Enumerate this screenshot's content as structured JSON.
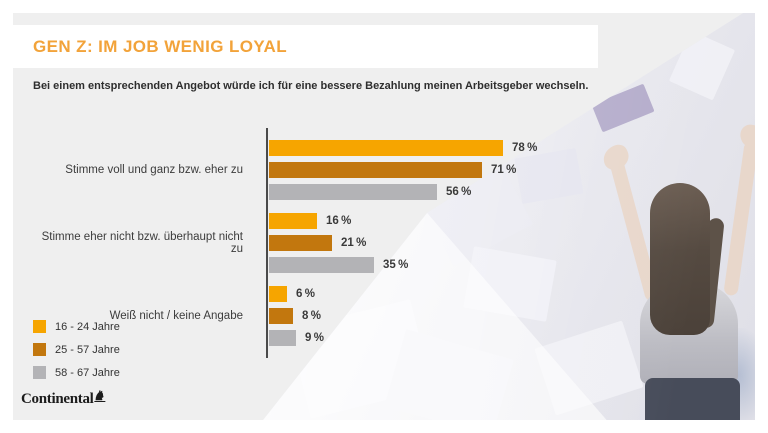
{
  "header": {
    "title": "GEN Z: IM JOB WENIG LOYAL",
    "subtitle": "Bei einem entsprechenden Angebot würde ich für eine bessere Bezahlung meinen Arbeitsgeber wechseln."
  },
  "chart_data": {
    "type": "bar",
    "orientation": "horizontal",
    "title": "GEN Z: IM JOB WENIG LOYAL",
    "question": "Bei einem entsprechenden Angebot würde ich für eine bessere Bezahlung meinen Arbeitsgeber wechseln.",
    "categories": [
      "Stimme voll und ganz bzw. eher zu",
      "Stimme eher nicht bzw. überhaupt nicht zu",
      "Weiß nicht / keine Angabe"
    ],
    "series": [
      {
        "name": "16 - 24 Jahre",
        "color": "#f6a500",
        "values": [
          78,
          16,
          6
        ]
      },
      {
        "name": "25 - 57 Jahre",
        "color": "#c2770e",
        "values": [
          71,
          21,
          8
        ]
      },
      {
        "name": "58 - 67 Jahre",
        "color": "#b3b3b6",
        "values": [
          56,
          35,
          9
        ]
      }
    ],
    "value_suffix": "%",
    "xlim": [
      0,
      100
    ],
    "grid": false,
    "legend_position": "bottom-left"
  },
  "footer": {
    "logo_text": "Continental",
    "logo_horse_glyph": "♞"
  },
  "colors": {
    "accent_orange": "#f2a33a",
    "bar_orange": "#f6a500",
    "bar_dark_orange": "#c2770e",
    "bar_gray": "#b3b3b6",
    "panel_gray": "#efefef",
    "axis": "#4a4a4a"
  }
}
